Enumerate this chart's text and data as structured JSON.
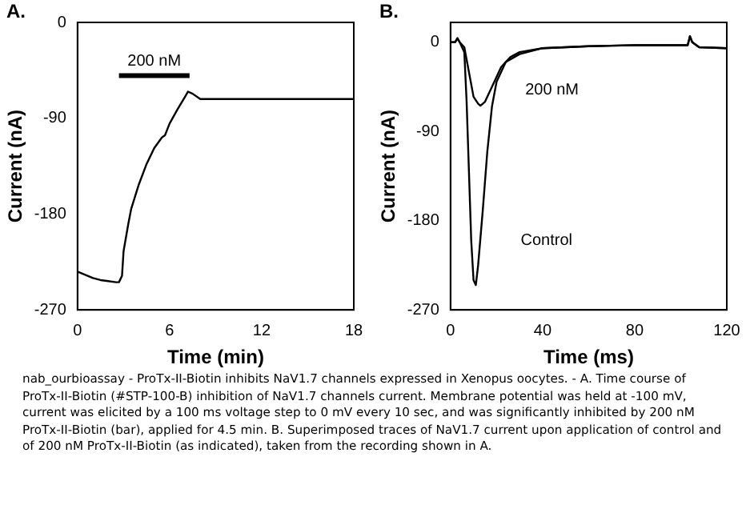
{
  "chart_data": [
    {
      "type": "line",
      "title": "A.",
      "xlabel": "Time (min)",
      "ylabel": "Current (nA)",
      "xlim": [
        0,
        18
      ],
      "xticks": [
        0,
        6,
        12,
        18
      ],
      "ylim": [
        -270,
        0
      ],
      "yticks": [
        0,
        -90,
        -180,
        -270
      ],
      "grid": false,
      "legend": false,
      "marker": "none",
      "series": [
        {
          "color": "#000000",
          "x": [
            0,
            0.5,
            1,
            1.5,
            2,
            2.5,
            2.7,
            2.9,
            3.0,
            3.3,
            3.5,
            4,
            4.5,
            5,
            5.5,
            5.7,
            6,
            6.5,
            7,
            7.2,
            7.5,
            8,
            9,
            10,
            12,
            14,
            16,
            18
          ],
          "values": [
            -234,
            -237,
            -240,
            -242,
            -243,
            -244,
            -244,
            -238,
            -215,
            -190,
            -175,
            -152,
            -133,
            -118,
            -108,
            -106,
            -95,
            -82,
            -70,
            -65,
            -67,
            -72,
            -72,
            -72,
            -72,
            -72,
            -72,
            -72
          ]
        },
        {
          "name": "200 nM",
          "color": "#000000",
          "x": [
            2.7,
            7.3
          ],
          "values": [
            -50,
            -50
          ]
        }
      ]
    },
    {
      "type": "line",
      "title": "B.",
      "xlabel": "Time (ms)",
      "ylabel": "Current (nA)",
      "xlim": [
        0,
        120
      ],
      "xticks": [
        0,
        40,
        80,
        120
      ],
      "ylim": [
        -270,
        20
      ],
      "yticks": [
        0,
        -90,
        -180,
        -270
      ],
      "grid": false,
      "legend": false,
      "marker": "none",
      "series": [
        {
          "name": "Control",
          "color": "#000000",
          "x": [
            0,
            2,
            3,
            4,
            6,
            7,
            8,
            9,
            10,
            11,
            12,
            14,
            16,
            18,
            20,
            24,
            30,
            40,
            60,
            80,
            100,
            103,
            104,
            105,
            108,
            120
          ],
          "values": [
            0,
            0,
            4,
            0,
            -10,
            -60,
            -130,
            -200,
            -240,
            -245,
            -225,
            -170,
            -110,
            -65,
            -40,
            -20,
            -12,
            -6,
            -4,
            -3,
            -3,
            -3,
            6,
            0,
            -5,
            -6
          ]
        },
        {
          "name": "200 nM",
          "color": "#000000",
          "x": [
            0,
            2,
            3,
            4,
            6,
            8,
            10,
            12,
            13,
            15,
            18,
            22,
            26,
            30,
            40,
            60,
            80,
            100,
            103,
            104,
            105,
            108,
            120
          ],
          "values": [
            0,
            0,
            4,
            0,
            -5,
            -30,
            -55,
            -62,
            -64,
            -60,
            -45,
            -25,
            -15,
            -10,
            -6,
            -4,
            -3,
            -3,
            -3,
            6,
            0,
            -5,
            -6
          ]
        }
      ],
      "annotations": [
        "nab_ourbioassay - ProTx-II-Biotin inhibits NaV1.7 channels expressed in Xenopus oocytes. - A. Time course of ProTx-II-Biotin (#STP-100-B) inhibition of NaV1.7 channels current. Membrane potential was held at -100 mV, current was elicited by a 100 ms voltage step to 0 mV every 10 sec, and was significantly inhibited by 200 nM ProTx-II-Biotin (bar), applied for 4.5 min. B. Superimposed traces of NaV1.7 current upon application of control and of 200 nM ProTx-II-Biotin (as indicated), taken from the recording shown in A."
      ]
    }
  ]
}
